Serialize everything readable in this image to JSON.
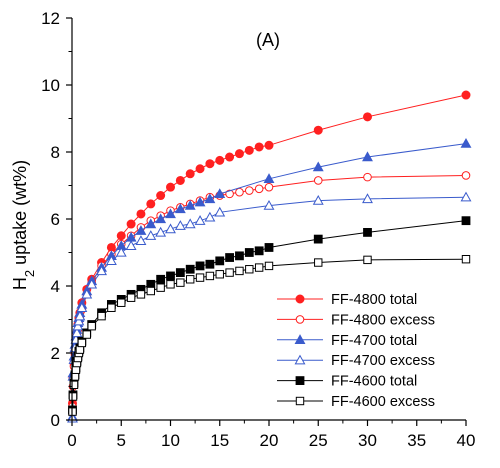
{
  "chart_data": {
    "type": "scatter",
    "title": "(A)",
    "xlabel": "",
    "ylabel_main": "H",
    "ylabel_sub": "2",
    "ylabel_rest": " uptake (wt%)",
    "xlim": [
      0,
      40
    ],
    "ylim": [
      0,
      12
    ],
    "x_ticks": [
      "0",
      "5",
      "10",
      "15",
      "20",
      "25",
      "30",
      "35",
      "40"
    ],
    "y_ticks": [
      "0",
      "2",
      "4",
      "6",
      "8",
      "10",
      "12"
    ],
    "grid": false,
    "legend_position": "bottom-right",
    "series": [
      {
        "name": "FF-4800 total",
        "color": "#ff2020",
        "marker": "circle-filled",
        "points": [
          [
            0.05,
            0.5
          ],
          [
            0.1,
            1.25
          ],
          [
            0.2,
            1.7
          ],
          [
            0.3,
            2.05
          ],
          [
            0.4,
            2.35
          ],
          [
            0.5,
            2.6
          ],
          [
            0.6,
            2.85
          ],
          [
            0.7,
            3.05
          ],
          [
            0.8,
            3.2
          ],
          [
            1,
            3.5
          ],
          [
            1.5,
            3.9
          ],
          [
            2,
            4.2
          ],
          [
            3,
            4.7
          ],
          [
            4,
            5.15
          ],
          [
            5,
            5.5
          ],
          [
            6,
            5.85
          ],
          [
            7,
            6.15
          ],
          [
            8,
            6.45
          ],
          [
            9,
            6.7
          ],
          [
            10,
            6.95
          ],
          [
            11,
            7.15
          ],
          [
            12,
            7.35
          ],
          [
            13,
            7.5
          ],
          [
            14,
            7.65
          ],
          [
            15,
            7.75
          ],
          [
            16,
            7.85
          ],
          [
            17,
            7.95
          ],
          [
            18,
            8.05
          ],
          [
            19,
            8.15
          ],
          [
            20,
            8.2
          ],
          [
            25,
            8.65
          ],
          [
            30,
            9.05
          ],
          [
            40,
            9.7
          ]
        ]
      },
      {
        "name": "FF-4800 excess",
        "color": "#ff2020",
        "marker": "circle-open",
        "points": [
          [
            0.05,
            0.4
          ],
          [
            0.1,
            1.0
          ],
          [
            0.2,
            1.6
          ],
          [
            0.3,
            1.95
          ],
          [
            0.4,
            2.25
          ],
          [
            0.5,
            2.5
          ],
          [
            0.6,
            2.7
          ],
          [
            0.7,
            2.9
          ],
          [
            0.8,
            3.05
          ],
          [
            1,
            3.3
          ],
          [
            1.5,
            3.75
          ],
          [
            2,
            4.1
          ],
          [
            3,
            4.6
          ],
          [
            4,
            4.95
          ],
          [
            5,
            5.25
          ],
          [
            6,
            5.5
          ],
          [
            7,
            5.75
          ],
          [
            8,
            5.95
          ],
          [
            9,
            6.1
          ],
          [
            10,
            6.25
          ],
          [
            11,
            6.35
          ],
          [
            12,
            6.45
          ],
          [
            13,
            6.55
          ],
          [
            14,
            6.65
          ],
          [
            15,
            6.7
          ],
          [
            16,
            6.75
          ],
          [
            17,
            6.8
          ],
          [
            18,
            6.85
          ],
          [
            19,
            6.9
          ],
          [
            20,
            6.95
          ],
          [
            25,
            7.15
          ],
          [
            30,
            7.25
          ],
          [
            40,
            7.3
          ]
        ]
      },
      {
        "name": "FF-4700 total",
        "color": "#3a5bcc",
        "marker": "triangle-filled",
        "points": [
          [
            0.05,
            0.1
          ],
          [
            0.1,
            1.4
          ],
          [
            0.2,
            1.9
          ],
          [
            0.3,
            2.25
          ],
          [
            0.4,
            2.5
          ],
          [
            0.5,
            2.7
          ],
          [
            0.6,
            2.9
          ],
          [
            0.7,
            3.05
          ],
          [
            0.8,
            3.2
          ],
          [
            1,
            3.45
          ],
          [
            1.5,
            3.85
          ],
          [
            2,
            4.15
          ],
          [
            3,
            4.55
          ],
          [
            4,
            4.9
          ],
          [
            5,
            5.2
          ],
          [
            6,
            5.45
          ],
          [
            7,
            5.65
          ],
          [
            8,
            5.85
          ],
          [
            9,
            6.0
          ],
          [
            10,
            6.15
          ],
          [
            11,
            6.3
          ],
          [
            12,
            6.4
          ],
          [
            13,
            6.5
          ],
          [
            14,
            6.6
          ],
          [
            15,
            6.75
          ],
          [
            20,
            7.2
          ],
          [
            25,
            7.55
          ],
          [
            30,
            7.85
          ],
          [
            40,
            8.25
          ]
        ]
      },
      {
        "name": "FF-4700 excess",
        "color": "#3a5bcc",
        "marker": "triangle-open",
        "points": [
          [
            0.05,
            0.05
          ],
          [
            0.1,
            1.3
          ],
          [
            0.2,
            1.8
          ],
          [
            0.3,
            2.15
          ],
          [
            0.4,
            2.4
          ],
          [
            0.5,
            2.6
          ],
          [
            0.6,
            2.8
          ],
          [
            0.7,
            2.95
          ],
          [
            0.8,
            3.1
          ],
          [
            1,
            3.35
          ],
          [
            1.5,
            3.75
          ],
          [
            2,
            4.05
          ],
          [
            3,
            4.45
          ],
          [
            4,
            4.75
          ],
          [
            5,
            5.0
          ],
          [
            6,
            5.2
          ],
          [
            7,
            5.35
          ],
          [
            8,
            5.5
          ],
          [
            9,
            5.6
          ],
          [
            10,
            5.7
          ],
          [
            11,
            5.8
          ],
          [
            12,
            5.85
          ],
          [
            13,
            5.95
          ],
          [
            14,
            6.05
          ],
          [
            15,
            6.2
          ],
          [
            20,
            6.4
          ],
          [
            25,
            6.55
          ],
          [
            30,
            6.6
          ],
          [
            40,
            6.65
          ]
        ]
      },
      {
        "name": "FF-4600 total",
        "color": "#000000",
        "marker": "square-filled",
        "points": [
          [
            0.05,
            0.3
          ],
          [
            0.1,
            0.75
          ],
          [
            0.2,
            1.1
          ],
          [
            0.3,
            1.35
          ],
          [
            0.4,
            1.55
          ],
          [
            0.5,
            1.75
          ],
          [
            0.6,
            1.9
          ],
          [
            0.7,
            2.05
          ],
          [
            0.8,
            2.15
          ],
          [
            1,
            2.35
          ],
          [
            1.5,
            2.6
          ],
          [
            2,
            2.85
          ],
          [
            3,
            3.2
          ],
          [
            4,
            3.45
          ],
          [
            5,
            3.6
          ],
          [
            6,
            3.75
          ],
          [
            7,
            3.9
          ],
          [
            8,
            4.05
          ],
          [
            9,
            4.2
          ],
          [
            10,
            4.3
          ],
          [
            11,
            4.4
          ],
          [
            12,
            4.5
          ],
          [
            13,
            4.6
          ],
          [
            14,
            4.65
          ],
          [
            15,
            4.75
          ],
          [
            16,
            4.85
          ],
          [
            17,
            4.9
          ],
          [
            18,
            5.0
          ],
          [
            19,
            5.05
          ],
          [
            20,
            5.15
          ],
          [
            25,
            5.4
          ],
          [
            30,
            5.6
          ],
          [
            40,
            5.95
          ]
        ]
      },
      {
        "name": "FF-4600 excess",
        "color": "#000000",
        "marker": "square-open",
        "points": [
          [
            0.05,
            0.25
          ],
          [
            0.1,
            0.7
          ],
          [
            0.2,
            1.05
          ],
          [
            0.3,
            1.3
          ],
          [
            0.4,
            1.5
          ],
          [
            0.5,
            1.7
          ],
          [
            0.6,
            1.85
          ],
          [
            0.7,
            2.0
          ],
          [
            0.8,
            2.1
          ],
          [
            1,
            2.3
          ],
          [
            1.5,
            2.55
          ],
          [
            2,
            2.8
          ],
          [
            3,
            3.1
          ],
          [
            4,
            3.35
          ],
          [
            5,
            3.5
          ],
          [
            6,
            3.65
          ],
          [
            7,
            3.75
          ],
          [
            8,
            3.85
          ],
          [
            9,
            3.95
          ],
          [
            10,
            4.05
          ],
          [
            11,
            4.1
          ],
          [
            12,
            4.2
          ],
          [
            13,
            4.25
          ],
          [
            14,
            4.3
          ],
          [
            15,
            4.35
          ],
          [
            16,
            4.4
          ],
          [
            17,
            4.45
          ],
          [
            18,
            4.5
          ],
          [
            19,
            4.55
          ],
          [
            20,
            4.6
          ],
          [
            25,
            4.7
          ],
          [
            30,
            4.78
          ],
          [
            40,
            4.8
          ]
        ]
      }
    ]
  }
}
